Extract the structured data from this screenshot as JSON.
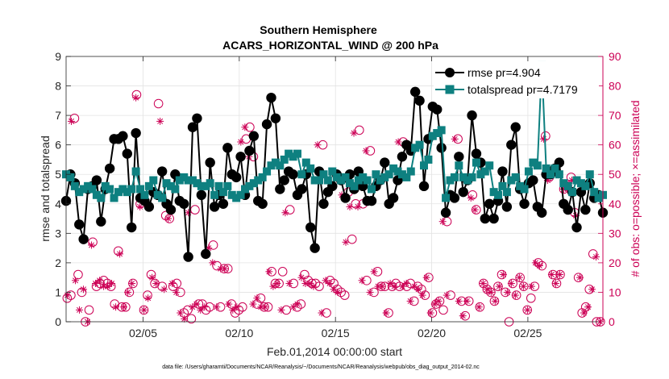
{
  "chart_data": {
    "type": "line",
    "title": "Southern Hemisphere",
    "subtitle": "ACARS_HORIZONTAL_WIND @ 200 hPa",
    "xlabel": "Feb.01,2014 00:00:00 start",
    "ylabel": "rmse and totalspread",
    "ylabel_right": "# of obs: o=possible; ×=assimilated",
    "footer": "data file: /Users/gharamti/Documents/NCAR/Reanalysis/~/Documents/NCAR/Reanalysis/webpub/obs_diag_output_2014-02.nc",
    "xlim": [
      1,
      28.9
    ],
    "ylim": [
      0,
      9
    ],
    "ylim_right": [
      0,
      90
    ],
    "x_ticks": [
      5,
      10,
      15,
      20,
      25
    ],
    "x_tick_labels": [
      "02/05",
      "02/10",
      "02/15",
      "02/20",
      "02/25"
    ],
    "y_ticks": [
      0,
      1,
      2,
      3,
      4,
      5,
      6,
      7,
      8,
      9
    ],
    "y_ticks_right": [
      0,
      10,
      20,
      30,
      40,
      50,
      60,
      70,
      80,
      90
    ],
    "colors": {
      "rmse": "#000000",
      "spread": "#0e8080",
      "obs": "#cc0055",
      "grid": "#e3e3e3"
    },
    "legend": [
      {
        "label": "rmse pr=4.904"
      },
      {
        "label": "totalspread pr=4.7179"
      }
    ],
    "series": [
      {
        "name": "rmse",
        "values": [
          4.1,
          5.0,
          4.7,
          3.3,
          2.8,
          4.5,
          4.6,
          4.8,
          3.4,
          4.5,
          5.2,
          6.2,
          6.2,
          6.3,
          5.7,
          3.2,
          6.4,
          4.2,
          4.1,
          3.9,
          4.4,
          4.3,
          5.1,
          4.0,
          3.8,
          5.0,
          4.1,
          4.0,
          2.2,
          6.6,
          6.9,
          4.3,
          2.3,
          5.4,
          3.9,
          4.3,
          4.0,
          5.9,
          5.0,
          4.9,
          5.6,
          4.3,
          5.8,
          6.3,
          4.1,
          4.0,
          6.7,
          7.6,
          6.9,
          4.5,
          4.8,
          5.1,
          5.0,
          4.3,
          4.5,
          5.0,
          3.2,
          2.5,
          5.1,
          4.0,
          4.4,
          4.6,
          5.0,
          4.8,
          4.2,
          5.0,
          4.5,
          5.1,
          4.6,
          4.1,
          4.1,
          4.6,
          4.8,
          5.4,
          4.0,
          4.2,
          4.8,
          5.6,
          6.0,
          5.8,
          7.8,
          7.5,
          4.6,
          6.2,
          7.3,
          7.2,
          5.9,
          3.7,
          4.3,
          4.2,
          5.6,
          4.4,
          4.8,
          7.0,
          5.7,
          5.4,
          3.5,
          4.0,
          3.5,
          4.1,
          5.1,
          3.9,
          6.0,
          6.6,
          4.5,
          4.0,
          4.7,
          4.8,
          3.9,
          3.7,
          5.0,
          5.0,
          5.2,
          5.4,
          4.0,
          3.8,
          4.4,
          3.2,
          4.4,
          3.8,
          4.7,
          4.2,
          4.3,
          3.7
        ]
      },
      {
        "name": "totalspread",
        "values": [
          5.0,
          4.9,
          4.6,
          4.4,
          4.5,
          4.6,
          4.5,
          4.3,
          4.2,
          4.6,
          4.5,
          4.2,
          4.4,
          4.5,
          4.4,
          4.5,
          5.1,
          4.5,
          4.3,
          4.6,
          4.8,
          4.3,
          4.2,
          4.7,
          4.6,
          4.5,
          4.8,
          4.9,
          4.8,
          4.8,
          4.7,
          4.6,
          4.6,
          4.7,
          4.3,
          4.6,
          4.4,
          4.6,
          4.3,
          4.2,
          4.3,
          4.5,
          4.6,
          4.7,
          4.8,
          4.9,
          5.1,
          5.3,
          5.4,
          5.3,
          5.5,
          5.7,
          5.6,
          5.7,
          5.0,
          5.4,
          5.2,
          4.8,
          4.8,
          5.0,
          4.8,
          5.1,
          4.9,
          4.8,
          4.9,
          4.7,
          4.6,
          4.8,
          4.9,
          4.8,
          4.5,
          5.0,
          4.8,
          4.9,
          5.0,
          5.2,
          5.1,
          5.0,
          4.9,
          5.1,
          5.9,
          6.0,
          5.3,
          5.5,
          6.3,
          6.4,
          6.5,
          4.2,
          4.8,
          4.9,
          5.3,
          4.9,
          4.8,
          4.9,
          5.4,
          5.0,
          5.1,
          5.3,
          4.4,
          4.3,
          4.6,
          4.4,
          4.8,
          4.9,
          4.6,
          4.5,
          5.1,
          5.4,
          5.3,
          8.7,
          5.2,
          5.0,
          5.2,
          5.0,
          4.7,
          4.6,
          4.4,
          4.8,
          4.7,
          4.6,
          5.0,
          4.4,
          4.2,
          4.3
        ]
      },
      {
        "name": "obs_possible",
        "values": [
          8,
          9,
          69,
          16,
          10,
          0,
          4,
          27,
          12,
          13,
          14,
          13,
          12,
          6,
          24,
          5,
          5,
          10,
          13,
          77,
          40,
          4,
          9,
          16,
          13,
          74,
          12,
          36,
          35,
          12,
          13,
          10,
          3,
          4,
          1,
          38,
          6,
          6,
          4,
          5,
          26,
          19,
          5,
          18,
          18,
          6,
          3,
          4,
          5,
          62,
          66,
          56,
          6,
          8,
          5,
          5,
          17,
          13,
          13,
          17,
          4,
          38,
          13,
          5,
          6,
          16,
          14,
          13,
          13,
          12,
          60,
          3,
          14,
          13,
          11,
          10,
          9,
          44,
          28,
          40,
          65,
          40,
          14,
          58,
          10,
          17,
          12,
          12,
          3,
          12,
          13,
          12,
          61,
          12,
          13,
          7,
          12,
          11,
          9,
          15,
          3,
          6,
          7,
          4,
          34,
          9,
          80,
          62,
          7,
          2,
          7,
          43,
          38,
          5,
          13,
          11,
          10,
          7,
          12,
          16,
          10,
          0,
          13,
          9,
          15,
          12,
          4,
          8,
          12,
          20,
          19,
          63,
          49,
          16,
          13,
          16,
          45,
          46,
          49,
          37,
          15,
          3,
          5,
          11,
          23,
          0,
          0
        ]
      },
      {
        "name": "obs_assimilated",
        "values": [
          9,
          68,
          14,
          4,
          11,
          0,
          26,
          13,
          14,
          12,
          12,
          13,
          5,
          23,
          5,
          10,
          13,
          76,
          39,
          4,
          8,
          15,
          13,
          68,
          11,
          35,
          13,
          10,
          3,
          1,
          37,
          5,
          6,
          4,
          5,
          25,
          20,
          5,
          18,
          18,
          6,
          4,
          5,
          61,
          66,
          56,
          6,
          8,
          5,
          5,
          17,
          12,
          13,
          4,
          37,
          13,
          5,
          6,
          15,
          13,
          13,
          12,
          60,
          3,
          14,
          13,
          11,
          10,
          43,
          27,
          39,
          64,
          39,
          14,
          58,
          10,
          17,
          12,
          12,
          3,
          13,
          12,
          61,
          12,
          13,
          7,
          12,
          11,
          9,
          15,
          3,
          6,
          7,
          34,
          9,
          81,
          62,
          7,
          2,
          7,
          42,
          38,
          5,
          13,
          11,
          10,
          7,
          12,
          16,
          10,
          13,
          9,
          15,
          12,
          4,
          12,
          20,
          19,
          62,
          48,
          16,
          13,
          16,
          45,
          45,
          48,
          36,
          15,
          3,
          5,
          11,
          22,
          0
        ]
      }
    ]
  }
}
